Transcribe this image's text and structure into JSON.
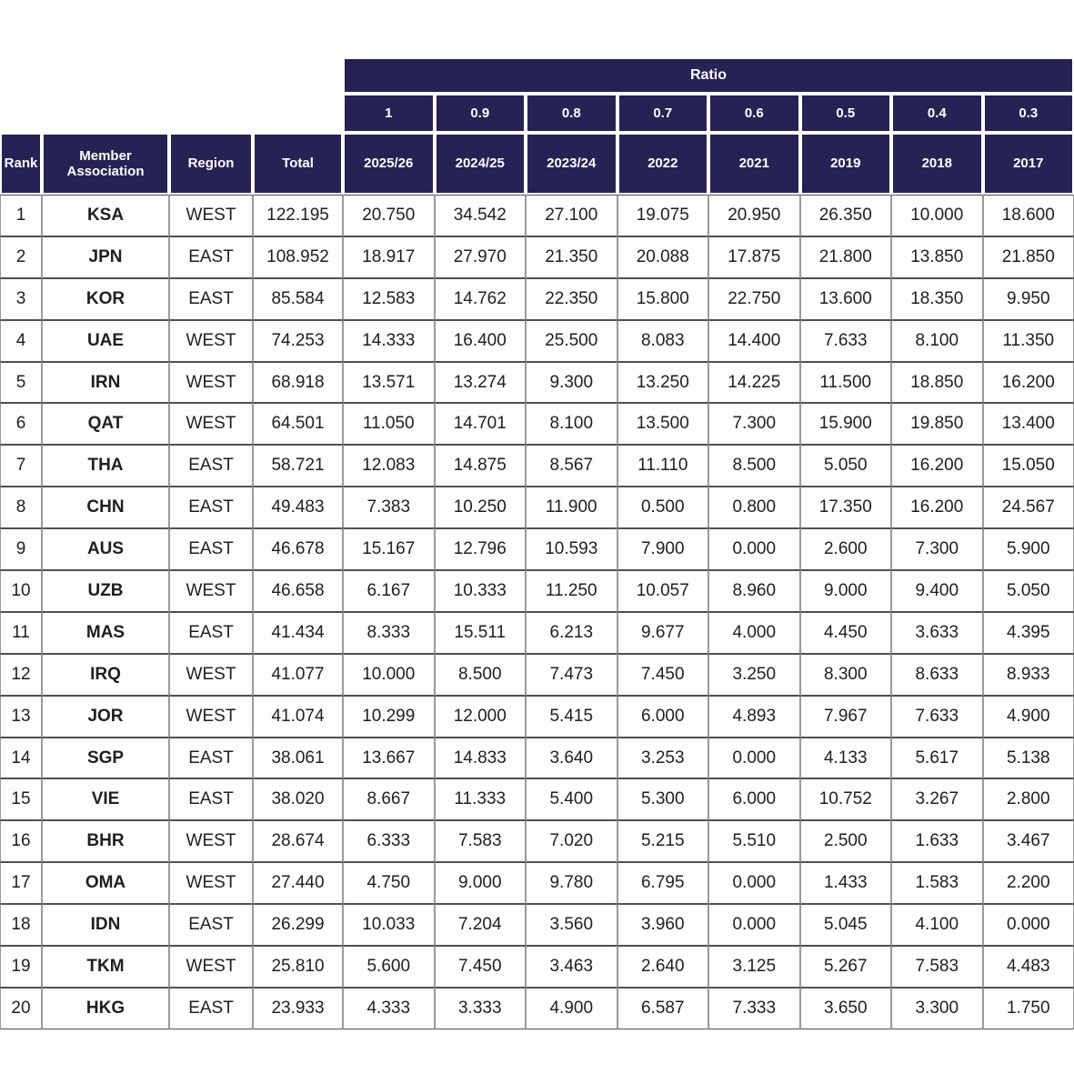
{
  "chart_data": {
    "type": "table",
    "title": "",
    "ratio_header": "Ratio",
    "ratio_values": [
      "1",
      "0.9",
      "0.8",
      "0.7",
      "0.6",
      "0.5",
      "0.4",
      "0.3"
    ],
    "columns": [
      "Rank",
      "Member Association",
      "Region",
      "Total",
      "2025/26",
      "2024/25",
      "2023/24",
      "2022",
      "2021",
      "2019",
      "2018",
      "2017"
    ],
    "rows": [
      [
        "1",
        "KSA",
        "WEST",
        "122.195",
        "20.750",
        "34.542",
        "27.100",
        "19.075",
        "20.950",
        "26.350",
        "10.000",
        "18.600"
      ],
      [
        "2",
        "JPN",
        "EAST",
        "108.952",
        "18.917",
        "27.970",
        "21.350",
        "20.088",
        "17.875",
        "21.800",
        "13.850",
        "21.850"
      ],
      [
        "3",
        "KOR",
        "EAST",
        "85.584",
        "12.583",
        "14.762",
        "22.350",
        "15.800",
        "22.750",
        "13.600",
        "18.350",
        "9.950"
      ],
      [
        "4",
        "UAE",
        "WEST",
        "74.253",
        "14.333",
        "16.400",
        "25.500",
        "8.083",
        "14.400",
        "7.633",
        "8.100",
        "11.350"
      ],
      [
        "5",
        "IRN",
        "WEST",
        "68.918",
        "13.571",
        "13.274",
        "9.300",
        "13.250",
        "14.225",
        "11.500",
        "18.850",
        "16.200"
      ],
      [
        "6",
        "QAT",
        "WEST",
        "64.501",
        "11.050",
        "14.701",
        "8.100",
        "13.500",
        "7.300",
        "15.900",
        "19.850",
        "13.400"
      ],
      [
        "7",
        "THA",
        "EAST",
        "58.721",
        "12.083",
        "14.875",
        "8.567",
        "11.110",
        "8.500",
        "5.050",
        "16.200",
        "15.050"
      ],
      [
        "8",
        "CHN",
        "EAST",
        "49.483",
        "7.383",
        "10.250",
        "11.900",
        "0.500",
        "0.800",
        "17.350",
        "16.200",
        "24.567"
      ],
      [
        "9",
        "AUS",
        "EAST",
        "46.678",
        "15.167",
        "12.796",
        "10.593",
        "7.900",
        "0.000",
        "2.600",
        "7.300",
        "5.900"
      ],
      [
        "10",
        "UZB",
        "WEST",
        "46.658",
        "6.167",
        "10.333",
        "11.250",
        "10.057",
        "8.960",
        "9.000",
        "9.400",
        "5.050"
      ],
      [
        "11",
        "MAS",
        "EAST",
        "41.434",
        "8.333",
        "15.511",
        "6.213",
        "9.677",
        "4.000",
        "4.450",
        "3.633",
        "4.395"
      ],
      [
        "12",
        "IRQ",
        "WEST",
        "41.077",
        "10.000",
        "8.500",
        "7.473",
        "7.450",
        "3.250",
        "8.300",
        "8.633",
        "8.933"
      ],
      [
        "13",
        "JOR",
        "WEST",
        "41.074",
        "10.299",
        "12.000",
        "5.415",
        "6.000",
        "4.893",
        "7.967",
        "7.633",
        "4.900"
      ],
      [
        "14",
        "SGP",
        "EAST",
        "38.061",
        "13.667",
        "14.833",
        "3.640",
        "3.253",
        "0.000",
        "4.133",
        "5.617",
        "5.138"
      ],
      [
        "15",
        "VIE",
        "EAST",
        "38.020",
        "8.667",
        "11.333",
        "5.400",
        "5.300",
        "6.000",
        "10.752",
        "3.267",
        "2.800"
      ],
      [
        "16",
        "BHR",
        "WEST",
        "28.674",
        "6.333",
        "7.583",
        "7.020",
        "5.215",
        "5.510",
        "2.500",
        "1.633",
        "3.467"
      ],
      [
        "17",
        "OMA",
        "WEST",
        "27.440",
        "4.750",
        "9.000",
        "9.780",
        "6.795",
        "0.000",
        "1.433",
        "1.583",
        "2.200"
      ],
      [
        "18",
        "IDN",
        "EAST",
        "26.299",
        "10.033",
        "7.204",
        "3.560",
        "3.960",
        "0.000",
        "5.045",
        "4.100",
        "0.000"
      ],
      [
        "19",
        "TKM",
        "WEST",
        "25.810",
        "5.600",
        "7.450",
        "3.463",
        "2.640",
        "3.125",
        "5.267",
        "7.583",
        "4.483"
      ],
      [
        "20",
        "HKG",
        "EAST",
        "23.933",
        "4.333",
        "3.333",
        "4.900",
        "6.587",
        "7.333",
        "3.650",
        "3.300",
        "1.750"
      ]
    ]
  }
}
